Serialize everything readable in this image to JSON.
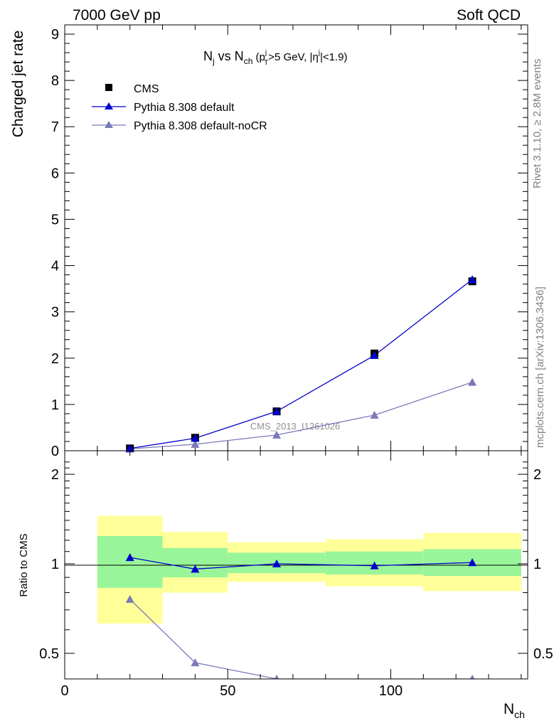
{
  "header": {
    "energy_label": "7000 GeV pp",
    "category_label": "Soft QCD"
  },
  "side_labels": {
    "rivet": "Rivet 3.1.10, ≥ 2.8M events",
    "source": "mcplots.cern.ch [arXiv:1306.3436]"
  },
  "watermark": "CMS_2013_I1261026",
  "colors": {
    "cms": "#000000",
    "default": "#0000cc",
    "nocr": "#7a7ab8",
    "band_inner": "#99f599",
    "band_outer": "#ffff99"
  },
  "chart_data": [
    {
      "type": "line",
      "panel": "main",
      "title": {
        "N": "N",
        "j": "j",
        "vs": " vs N",
        "ch": "ch",
        "open": " (p",
        "T": "T",
        "sup_j": "j",
        "pt_cut": ">5 GeV, |η",
        "sup_j2": "j",
        "eta_cut": "|<1.9)"
      },
      "ylabel": "Charged jet rate",
      "ylim": [
        0,
        9.2
      ],
      "yticks": [
        0,
        1,
        2,
        3,
        4,
        5,
        6,
        7,
        8,
        9
      ],
      "xlim": [
        0,
        142
      ],
      "x": [
        20,
        40,
        65,
        95,
        125
      ],
      "series": [
        {
          "name": "CMS",
          "marker": "square",
          "values": [
            0.05,
            0.28,
            0.85,
            2.1,
            3.66
          ]
        },
        {
          "name": "Pythia 8.308 default",
          "marker": "triangle",
          "values": [
            0.05,
            0.27,
            0.85,
            2.06,
            3.7
          ]
        },
        {
          "name": "Pythia 8.308 default-noCR",
          "marker": "triangle",
          "values": [
            0.04,
            0.14,
            0.34,
            0.77,
            1.48
          ]
        }
      ],
      "legend_position": "top-left"
    },
    {
      "type": "line",
      "panel": "ratio",
      "ylabel": "Ratio to CMS",
      "xlabel": {
        "N": "N",
        "sub": "ch"
      },
      "ylim": [
        0.41,
        2.4
      ],
      "ylog": true,
      "yticks": [
        "0.5",
        "1",
        "2"
      ],
      "xlim": [
        0,
        142
      ],
      "xticks": [
        0,
        50,
        100
      ],
      "bands": [
        {
          "x_range": [
            10,
            30
          ],
          "inner": [
            0.83,
            1.24
          ],
          "outer": [
            0.63,
            1.45
          ]
        },
        {
          "x_range": [
            30,
            50
          ],
          "inner": [
            0.9,
            1.13
          ],
          "outer": [
            0.8,
            1.28
          ]
        },
        {
          "x_range": [
            50,
            80
          ],
          "inner": [
            0.93,
            1.09
          ],
          "outer": [
            0.87,
            1.18
          ]
        },
        {
          "x_range": [
            80,
            110
          ],
          "inner": [
            0.92,
            1.1
          ],
          "outer": [
            0.84,
            1.21
          ]
        },
        {
          "x_range": [
            110,
            140
          ],
          "inner": [
            0.91,
            1.12
          ],
          "outer": [
            0.81,
            1.27
          ]
        }
      ],
      "x": [
        20,
        40,
        65,
        95,
        125
      ],
      "series": [
        {
          "name": "Pythia 8.308 default",
          "values": [
            1.05,
            0.96,
            1.0,
            0.985,
            1.01
          ]
        },
        {
          "name": "Pythia 8.308 default-noCR",
          "values": [
            0.76,
            0.465,
            0.41,
            null,
            0.41
          ]
        }
      ],
      "reference_line": 1
    }
  ]
}
